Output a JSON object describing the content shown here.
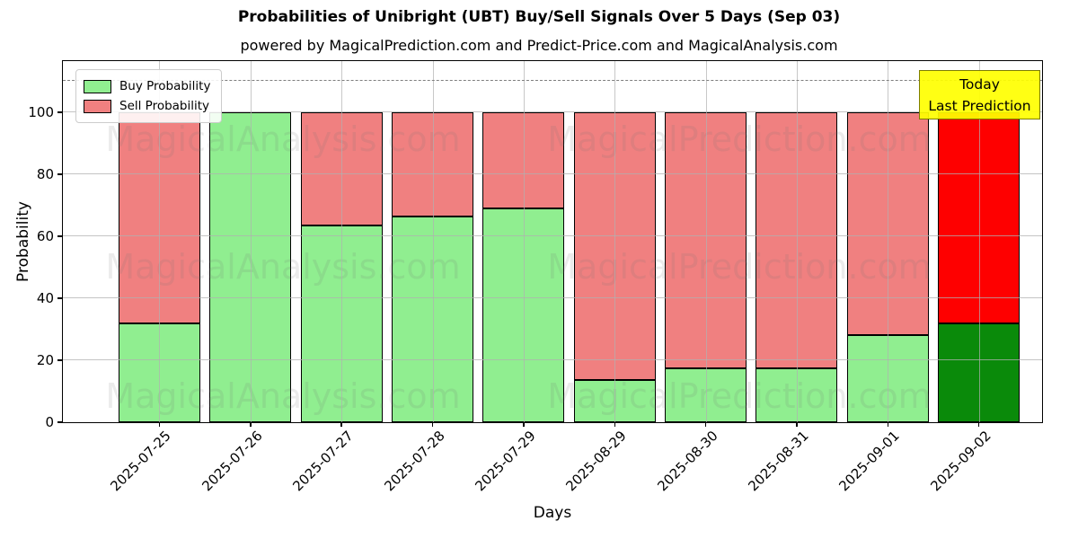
{
  "header": {
    "title": "Probabilities of Unibright (UBT) Buy/Sell Signals Over 5 Days (Sep 03)",
    "subtitle": "powered by MagicalPrediction.com and Predict-Price.com and MagicalAnalysis.com"
  },
  "axes": {
    "xlabel": "Days",
    "ylabel": "Probability"
  },
  "legend": {
    "items": [
      {
        "label": "Buy Probability",
        "color": "#90ee90"
      },
      {
        "label": "Sell Probability",
        "color": "#f08080"
      }
    ]
  },
  "annotation_box": {
    "line1": "Today",
    "line2": "Last Prediction",
    "bg_color": "#ffff00",
    "border_color": "#7d7d00"
  },
  "watermarks": {
    "left_text": "MagicalAnalysis.com",
    "right_text": "MagicalPrediction.com"
  },
  "chart_data": {
    "type": "bar",
    "stacked": true,
    "title": "Probabilities of Unibright (UBT) Buy/Sell Signals Over 5 Days (Sep 03)",
    "xlabel": "Days",
    "ylabel": "Probability",
    "categories": [
      "2025-07-25",
      "2025-07-26",
      "2025-07-27",
      "2025-07-28",
      "2025-07-29",
      "2025-08-29",
      "2025-08-30",
      "2025-08-31",
      "2025-09-01",
      "2025-09-02"
    ],
    "series": [
      {
        "name": "Buy Probability",
        "color": "#90ee90",
        "today_color": "#0a8a0a",
        "values": [
          32,
          100,
          63.5,
          66.5,
          69,
          13.5,
          17.5,
          17.5,
          28,
          32
        ]
      },
      {
        "name": "Sell Probability",
        "color": "#f08080",
        "today_color": "#fe0000",
        "values": [
          68,
          0,
          36.5,
          33.5,
          31,
          86.5,
          82.5,
          82.5,
          72,
          68
        ]
      }
    ],
    "yticks": [
      0,
      20,
      40,
      60,
      80,
      100
    ],
    "ylim": [
      0,
      116.5
    ],
    "reference_line_y": 110,
    "grid": true,
    "legend_position": "upper left",
    "today_bar_index": 9
  }
}
